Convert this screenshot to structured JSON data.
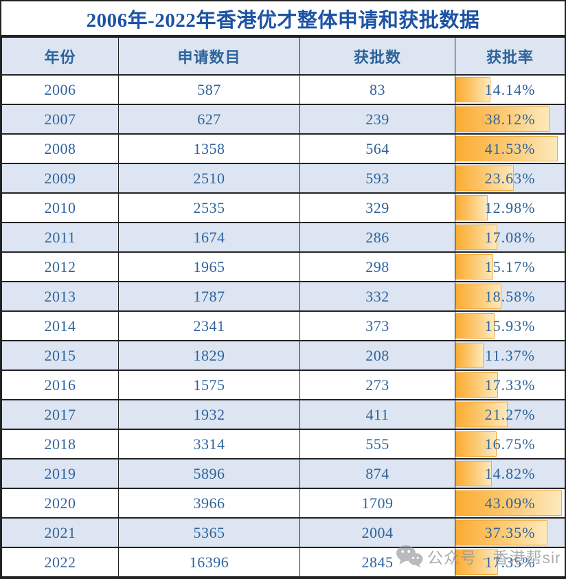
{
  "chart_data": {
    "type": "table",
    "title": "2006年-2022年香港优才整体申请和获批数据",
    "columns": [
      "年份",
      "申请数目",
      "获批数",
      "获批率"
    ],
    "rows": [
      {
        "year": "2006",
        "applications": "587",
        "approvals": "83",
        "approval_rate": 14.14,
        "rate_display": "14.14%"
      },
      {
        "year": "2007",
        "applications": "627",
        "approvals": "239",
        "approval_rate": 38.12,
        "rate_display": "38.12%"
      },
      {
        "year": "2008",
        "applications": "1358",
        "approvals": "564",
        "approval_rate": 41.53,
        "rate_display": "41.53%"
      },
      {
        "year": "2009",
        "applications": "2510",
        "approvals": "593",
        "approval_rate": 23.63,
        "rate_display": "23.63%"
      },
      {
        "year": "2010",
        "applications": "2535",
        "approvals": "329",
        "approval_rate": 12.98,
        "rate_display": "12.98%"
      },
      {
        "year": "2011",
        "applications": "1674",
        "approvals": "286",
        "approval_rate": 17.08,
        "rate_display": "17.08%"
      },
      {
        "year": "2012",
        "applications": "1965",
        "approvals": "298",
        "approval_rate": 15.17,
        "rate_display": "15.17%"
      },
      {
        "year": "2013",
        "applications": "1787",
        "approvals": "332",
        "approval_rate": 18.58,
        "rate_display": "18.58%"
      },
      {
        "year": "2014",
        "applications": "2341",
        "approvals": "373",
        "approval_rate": 15.93,
        "rate_display": "15.93%"
      },
      {
        "year": "2015",
        "applications": "1829",
        "approvals": "208",
        "approval_rate": 11.37,
        "rate_display": "11.37%"
      },
      {
        "year": "2016",
        "applications": "1575",
        "approvals": "273",
        "approval_rate": 17.33,
        "rate_display": "17.33%"
      },
      {
        "year": "2017",
        "applications": "1932",
        "approvals": "411",
        "approval_rate": 21.27,
        "rate_display": "21.27%"
      },
      {
        "year": "2018",
        "applications": "3314",
        "approvals": "555",
        "approval_rate": 16.75,
        "rate_display": "16.75%"
      },
      {
        "year": "2019",
        "applications": "5896",
        "approvals": "874",
        "approval_rate": 14.82,
        "rate_display": "14.82%"
      },
      {
        "year": "2020",
        "applications": "3966",
        "approvals": "1709",
        "approval_rate": 43.09,
        "rate_display": "43.09%"
      },
      {
        "year": "2021",
        "applications": "5365",
        "approvals": "2004",
        "approval_rate": 37.35,
        "rate_display": "37.35%"
      },
      {
        "year": "2022",
        "applications": "16396",
        "approvals": "2845",
        "approval_rate": 17.35,
        "rate_display": "17.35%"
      }
    ],
    "data_bar": {
      "column": "获批率",
      "axis_min": 0,
      "axis_max": 44.2,
      "fill_start": "#FBAC33",
      "fill_end": "#FDE9BD",
      "border_color": "#F3A93C"
    },
    "layout": {
      "grid": "on",
      "banded_rows": true
    }
  },
  "watermark": {
    "icon": "wechat-icon",
    "text": "公众号 · 香港帮sir"
  },
  "colors": {
    "title_text": "#1D53A3",
    "cell_text": "#2E639C",
    "band_fill": "#DCE5F1",
    "grid_border": "#222222",
    "bar_fill": "#FBAC33",
    "watermark_gray": "#94969B"
  }
}
